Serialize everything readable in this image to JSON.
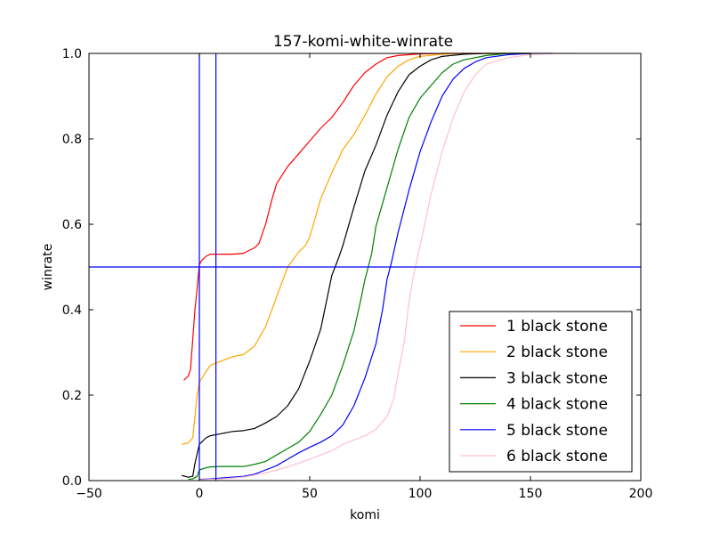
{
  "chart_data": {
    "type": "line",
    "title": "157-komi-white-winrate",
    "xlabel": "komi",
    "ylabel": "winrate",
    "xlim": [
      -50,
      200
    ],
    "ylim": [
      0.0,
      1.0
    ],
    "xticks": [
      -50,
      0,
      50,
      100,
      150,
      200
    ],
    "xtick_labels": [
      "−50",
      "0",
      "50",
      "100",
      "150",
      "200"
    ],
    "yticks": [
      0.0,
      0.2,
      0.4,
      0.6,
      0.8,
      1.0
    ],
    "ytick_labels": [
      "0.0",
      "0.2",
      "0.4",
      "0.6",
      "0.8",
      "1.0"
    ],
    "grid": false,
    "legend_position": "lower-right",
    "reference_lines": [
      {
        "orientation": "vertical",
        "value": 0,
        "color": "#0000ff"
      },
      {
        "orientation": "vertical",
        "value": 7.5,
        "color": "#0000ff"
      },
      {
        "orientation": "horizontal",
        "value": 0.5,
        "color": "#0000ff"
      }
    ],
    "series": [
      {
        "name": "1 black stone",
        "color": "#ff0000",
        "points": [
          [
            -7,
            0.235
          ],
          [
            -5,
            0.245
          ],
          [
            -4,
            0.26
          ],
          [
            -3,
            0.33
          ],
          [
            -2,
            0.4
          ],
          [
            -1,
            0.45
          ],
          [
            0,
            0.505
          ],
          [
            1,
            0.515
          ],
          [
            3,
            0.525
          ],
          [
            5,
            0.53
          ],
          [
            15,
            0.53
          ],
          [
            20,
            0.532
          ],
          [
            25,
            0.545
          ],
          [
            27,
            0.555
          ],
          [
            30,
            0.6
          ],
          [
            33,
            0.66
          ],
          [
            35,
            0.695
          ],
          [
            40,
            0.735
          ],
          [
            45,
            0.765
          ],
          [
            50,
            0.795
          ],
          [
            55,
            0.825
          ],
          [
            60,
            0.85
          ],
          [
            65,
            0.885
          ],
          [
            70,
            0.925
          ],
          [
            75,
            0.955
          ],
          [
            80,
            0.975
          ],
          [
            85,
            0.99
          ],
          [
            90,
            0.995
          ],
          [
            100,
            0.999
          ],
          [
            110,
            1.0
          ],
          [
            150,
            1.0
          ]
        ]
      },
      {
        "name": "2 black stone",
        "color": "#ffa500",
        "points": [
          [
            -8,
            0.085
          ],
          [
            -5,
            0.088
          ],
          [
            -3,
            0.1
          ],
          [
            -2,
            0.15
          ],
          [
            -1,
            0.2
          ],
          [
            0,
            0.23
          ],
          [
            3,
            0.255
          ],
          [
            5,
            0.27
          ],
          [
            10,
            0.28
          ],
          [
            15,
            0.29
          ],
          [
            20,
            0.295
          ],
          [
            25,
            0.315
          ],
          [
            30,
            0.36
          ],
          [
            35,
            0.43
          ],
          [
            40,
            0.5
          ],
          [
            45,
            0.535
          ],
          [
            48,
            0.55
          ],
          [
            50,
            0.57
          ],
          [
            55,
            0.66
          ],
          [
            60,
            0.72
          ],
          [
            65,
            0.775
          ],
          [
            70,
            0.81
          ],
          [
            75,
            0.855
          ],
          [
            80,
            0.905
          ],
          [
            85,
            0.945
          ],
          [
            90,
            0.97
          ],
          [
            95,
            0.985
          ],
          [
            100,
            0.993
          ],
          [
            110,
            0.998
          ],
          [
            120,
            1.0
          ],
          [
            150,
            1.0
          ]
        ]
      },
      {
        "name": "3 black stone",
        "color": "#000000",
        "points": [
          [
            -8,
            0.012
          ],
          [
            -5,
            0.008
          ],
          [
            -3,
            0.01
          ],
          [
            -2,
            0.04
          ],
          [
            0,
            0.085
          ],
          [
            3,
            0.1
          ],
          [
            5,
            0.105
          ],
          [
            10,
            0.11
          ],
          [
            15,
            0.115
          ],
          [
            20,
            0.117
          ],
          [
            25,
            0.122
          ],
          [
            30,
            0.135
          ],
          [
            35,
            0.15
          ],
          [
            40,
            0.175
          ],
          [
            45,
            0.215
          ],
          [
            50,
            0.28
          ],
          [
            55,
            0.355
          ],
          [
            58,
            0.43
          ],
          [
            60,
            0.48
          ],
          [
            63,
            0.52
          ],
          [
            65,
            0.55
          ],
          [
            70,
            0.64
          ],
          [
            75,
            0.725
          ],
          [
            80,
            0.785
          ],
          [
            85,
            0.855
          ],
          [
            90,
            0.91
          ],
          [
            95,
            0.95
          ],
          [
            100,
            0.97
          ],
          [
            105,
            0.985
          ],
          [
            110,
            0.993
          ],
          [
            120,
            0.998
          ],
          [
            130,
            1.0
          ],
          [
            150,
            1.0
          ]
        ]
      },
      {
        "name": "4 black stone",
        "color": "#008000",
        "points": [
          [
            -5,
            0.003
          ],
          [
            -3,
            0.004
          ],
          [
            -1,
            0.01
          ],
          [
            0,
            0.025
          ],
          [
            3,
            0.03
          ],
          [
            5,
            0.032
          ],
          [
            10,
            0.033
          ],
          [
            20,
            0.033
          ],
          [
            25,
            0.038
          ],
          [
            30,
            0.045
          ],
          [
            35,
            0.06
          ],
          [
            40,
            0.075
          ],
          [
            45,
            0.09
          ],
          [
            50,
            0.115
          ],
          [
            55,
            0.155
          ],
          [
            60,
            0.2
          ],
          [
            65,
            0.27
          ],
          [
            70,
            0.35
          ],
          [
            73,
            0.42
          ],
          [
            75,
            0.47
          ],
          [
            78,
            0.53
          ],
          [
            80,
            0.595
          ],
          [
            85,
            0.685
          ],
          [
            90,
            0.775
          ],
          [
            95,
            0.85
          ],
          [
            100,
            0.895
          ],
          [
            105,
            0.925
          ],
          [
            110,
            0.955
          ],
          [
            115,
            0.975
          ],
          [
            120,
            0.985
          ],
          [
            130,
            0.995
          ],
          [
            140,
            1.0
          ],
          [
            150,
            1.0
          ]
        ]
      },
      {
        "name": "5 black stone",
        "color": "#0000ff",
        "points": [
          [
            0,
            0.003
          ],
          [
            5,
            0.004
          ],
          [
            10,
            0.006
          ],
          [
            20,
            0.01
          ],
          [
            25,
            0.015
          ],
          [
            30,
            0.025
          ],
          [
            35,
            0.035
          ],
          [
            40,
            0.05
          ],
          [
            45,
            0.065
          ],
          [
            50,
            0.078
          ],
          [
            55,
            0.09
          ],
          [
            60,
            0.105
          ],
          [
            65,
            0.13
          ],
          [
            70,
            0.175
          ],
          [
            75,
            0.24
          ],
          [
            80,
            0.32
          ],
          [
            83,
            0.4
          ],
          [
            85,
            0.47
          ],
          [
            87,
            0.51
          ],
          [
            90,
            0.58
          ],
          [
            95,
            0.68
          ],
          [
            100,
            0.77
          ],
          [
            105,
            0.84
          ],
          [
            110,
            0.9
          ],
          [
            115,
            0.94
          ],
          [
            120,
            0.965
          ],
          [
            125,
            0.98
          ],
          [
            130,
            0.99
          ],
          [
            140,
            0.997
          ],
          [
            150,
            1.0
          ],
          [
            160,
            1.0
          ]
        ]
      },
      {
        "name": "6 black stone",
        "color": "#ffc0cb",
        "points": [
          [
            0,
            0.002
          ],
          [
            10,
            0.004
          ],
          [
            20,
            0.008
          ],
          [
            30,
            0.018
          ],
          [
            40,
            0.032
          ],
          [
            50,
            0.05
          ],
          [
            55,
            0.06
          ],
          [
            60,
            0.07
          ],
          [
            65,
            0.085
          ],
          [
            70,
            0.095
          ],
          [
            75,
            0.105
          ],
          [
            80,
            0.12
          ],
          [
            85,
            0.15
          ],
          [
            88,
            0.19
          ],
          [
            90,
            0.25
          ],
          [
            93,
            0.33
          ],
          [
            95,
            0.42
          ],
          [
            97,
            0.48
          ],
          [
            100,
            0.55
          ],
          [
            105,
            0.67
          ],
          [
            110,
            0.77
          ],
          [
            115,
            0.85
          ],
          [
            120,
            0.91
          ],
          [
            125,
            0.95
          ],
          [
            130,
            0.975
          ],
          [
            140,
            0.99
          ],
          [
            150,
            0.997
          ],
          [
            160,
            1.0
          ],
          [
            170,
            1.0
          ]
        ]
      }
    ]
  }
}
